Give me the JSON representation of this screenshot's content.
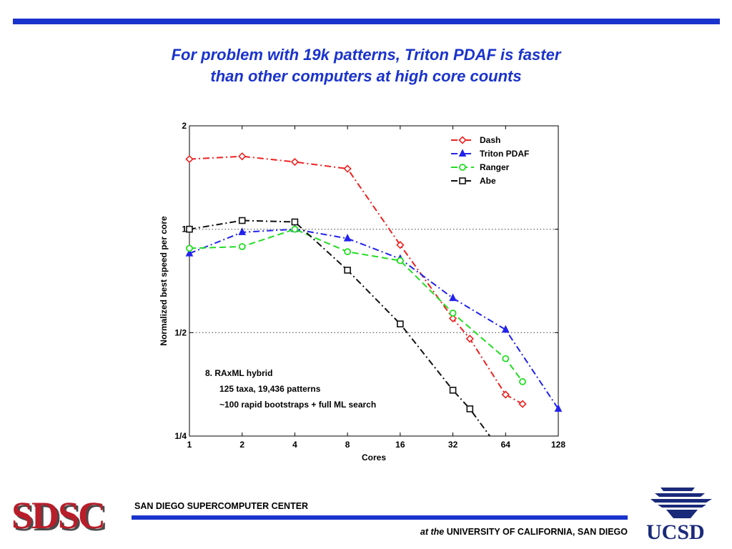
{
  "slide": {
    "title_line1": "For problem with 19k patterns, Triton PDAF is faster",
    "title_line2": "than other computers at high core counts"
  },
  "footer": {
    "logo_text": "SDSC",
    "org_name": "SAN DIEGO SUPERCOMPUTER CENTER",
    "univ_prefix": "at the",
    "univ_name": "UNIVERSITY OF CALIFORNIA, SAN DIEGO",
    "ucsd_logo_text": "UCSD"
  },
  "colors": {
    "brand_blue": "#1a33cc",
    "sdsc_red": "#b81e2a"
  },
  "chart_data": {
    "type": "line",
    "xlabel": "Cores",
    "ylabel": "Normalized best speed per core",
    "x_scale": "log2",
    "y_scale": "log2",
    "x_ticks": [
      1,
      2,
      4,
      8,
      16,
      32,
      64,
      128
    ],
    "x_tick_labels": [
      "1",
      "2",
      "4",
      "8",
      "16",
      "32",
      "64",
      "128"
    ],
    "y_ticks": [
      0.25,
      0.5,
      1,
      2
    ],
    "y_tick_labels": [
      "1/4",
      "1/2",
      "1",
      "2"
    ],
    "xlim": [
      1,
      128
    ],
    "ylim": [
      0.25,
      2
    ],
    "grid": "dotted at y=1/2 and y=1",
    "legend_position": "top-right",
    "annotation": [
      "8.  RAxML hybrid",
      "125 taxa, 19,436 patterns",
      "~100 rapid bootstraps + full ML search"
    ],
    "series": [
      {
        "name": "Dash",
        "color": "#ee2222",
        "marker": "diamond",
        "dash": "9,4,2,4",
        "x": [
          1,
          2,
          4,
          8,
          16,
          32,
          40,
          64,
          80
        ],
        "y": [
          1.6,
          1.63,
          1.57,
          1.5,
          0.9,
          0.55,
          0.48,
          0.33,
          0.31
        ]
      },
      {
        "name": "Triton PDAF",
        "color": "#2222ee",
        "marker": "triangle",
        "dash": "9,4,2,4",
        "x": [
          1,
          2,
          4,
          8,
          16,
          32,
          64,
          128
        ],
        "y": [
          0.85,
          0.98,
          1.0,
          0.94,
          0.82,
          0.63,
          0.51,
          0.3
        ]
      },
      {
        "name": "Ranger",
        "color": "#22dd22",
        "marker": "circle",
        "dash": "9,5",
        "x": [
          1,
          2,
          4,
          8,
          16,
          32,
          64,
          80
        ],
        "y": [
          0.88,
          0.89,
          1.0,
          0.86,
          0.81,
          0.57,
          0.42,
          0.36
        ]
      },
      {
        "name": "Abe",
        "color": "#111111",
        "marker": "square",
        "dash": "9,4,2,4",
        "x": [
          1,
          2,
          4,
          8,
          16,
          32,
          40,
          52
        ],
        "y": [
          1.0,
          1.06,
          1.05,
          0.76,
          0.53,
          0.34,
          0.3,
          0.25
        ]
      }
    ]
  }
}
